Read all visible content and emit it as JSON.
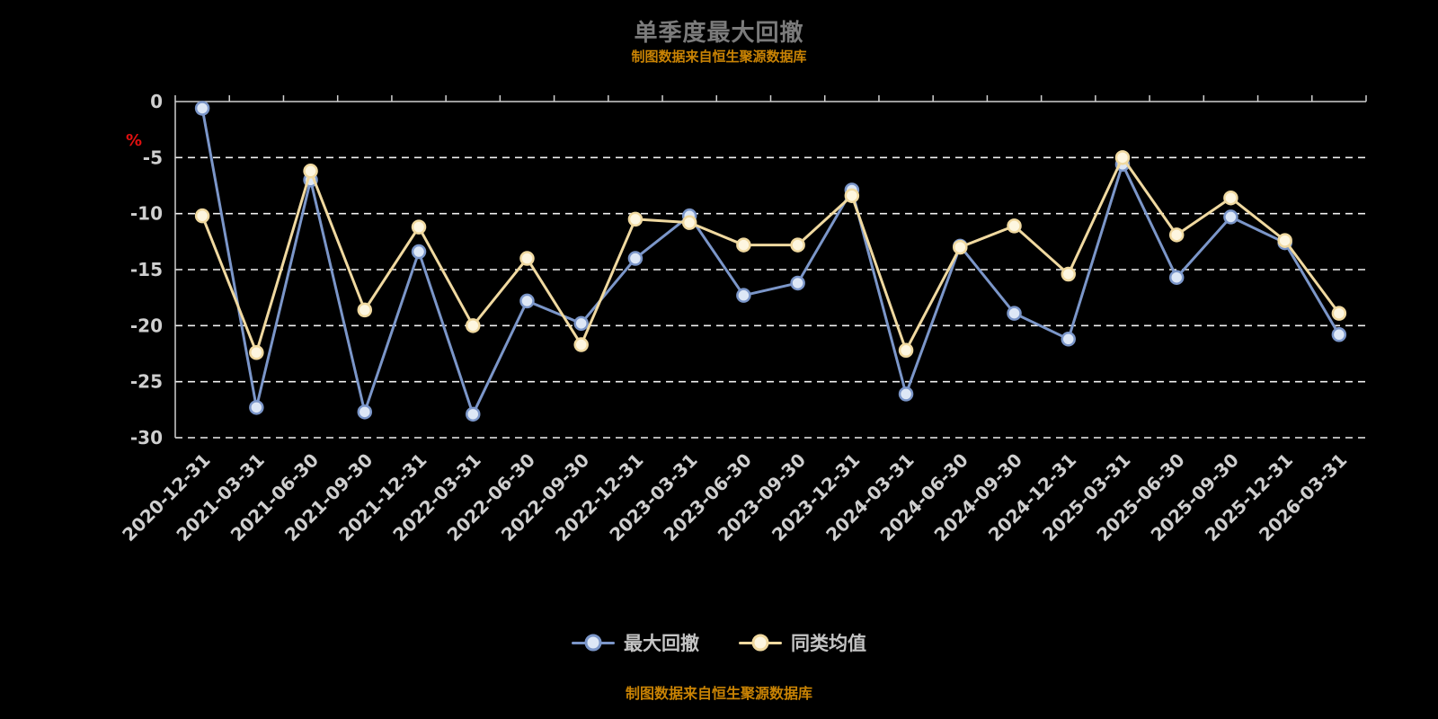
{
  "title": "单季度最大回撤",
  "subtitle": "制图数据来自恒生聚源数据库",
  "footer": "制图数据来自恒生聚源数据库",
  "y_axis_unit": "%",
  "colors": {
    "background": "#000000",
    "title": "#7b7b7b",
    "subtitle_orange": "#c98304",
    "axis_text": "#cfcfcf",
    "unit_red": "#e01010",
    "series_blue": "#7b96c9",
    "series_yellow": "#f0d9a0"
  },
  "chart_data": {
    "type": "line",
    "title": "单季度最大回撤",
    "ylabel": "%",
    "ylim": [
      -30,
      0
    ],
    "yticks": [
      0,
      -5,
      -10,
      -15,
      -20,
      -25,
      -30
    ],
    "grid": "horizontal dashed",
    "legend_position": "bottom",
    "categories": [
      "2020-12-31",
      "2021-03-31",
      "2021-06-30",
      "2021-09-30",
      "2021-12-31",
      "2022-03-31",
      "2022-06-30",
      "2022-09-30",
      "2022-12-31",
      "2023-03-31",
      "2023-06-30",
      "2023-09-30",
      "2023-12-31",
      "2024-03-31",
      "2024-06-30",
      "2024-09-30",
      "2024-12-31",
      "2025-03-31",
      "2025-06-30",
      "2025-09-30",
      "2025-12-31",
      "2026-03-31"
    ],
    "series": [
      {
        "name": "最大回撤",
        "color": "#7b96c9",
        "marker_fill": "#dde7f6",
        "values": [
          -0.6,
          -27.3,
          -7.0,
          -27.7,
          -13.4,
          -27.9,
          -17.8,
          -19.8,
          -14.0,
          -10.2,
          -17.3,
          -16.2,
          -7.9,
          -26.1,
          -12.9,
          -18.9,
          -21.2,
          -5.6,
          -15.7,
          -10.3,
          -12.6,
          -20.8
        ]
      },
      {
        "name": "同类均值",
        "color": "#f0d9a0",
        "marker_fill": "#fdf6e0",
        "values": [
          -10.2,
          -22.4,
          -6.2,
          -18.6,
          -11.2,
          -20.0,
          -14.0,
          -21.7,
          -10.5,
          -10.8,
          -12.8,
          -12.8,
          -8.4,
          -22.2,
          -13.0,
          -11.1,
          -15.4,
          -5.0,
          -11.9,
          -8.6,
          -12.4,
          -18.9
        ]
      }
    ]
  }
}
